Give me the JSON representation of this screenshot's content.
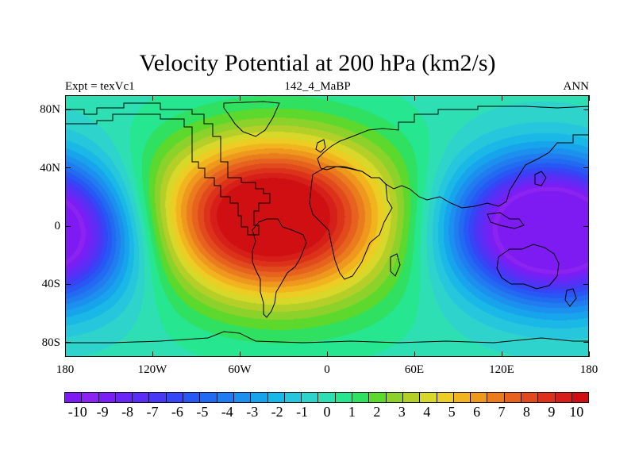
{
  "title": "Velocity Potential at 200 hPa (km2/s)",
  "subtitle_left": "Expt = texVc1",
  "subtitle_center": "142_4_MaBP",
  "subtitle_right": "ANN",
  "x_axis_labels": [
    {
      "lon": -180,
      "text": "180"
    },
    {
      "lon": -120,
      "text": "120W"
    },
    {
      "lon": -60,
      "text": "60W"
    },
    {
      "lon": 0,
      "text": "0"
    },
    {
      "lon": 60,
      "text": "60E"
    },
    {
      "lon": 120,
      "text": "120E"
    },
    {
      "lon": 180,
      "text": "180"
    }
  ],
  "y_axis_labels": [
    {
      "lat": 80,
      "text": "80N"
    },
    {
      "lat": 40,
      "text": "40N"
    },
    {
      "lat": 0,
      "text": "0"
    },
    {
      "lat": -40,
      "text": "40S"
    },
    {
      "lat": -80,
      "text": "80S"
    }
  ],
  "colorbar": {
    "colors": [
      "#7e1af2",
      "#8c24f1",
      "#7a1ef5",
      "#6a26f5",
      "#5a2ef5",
      "#4838f6",
      "#3446f6",
      "#2858f4",
      "#236af2",
      "#207cef",
      "#1c90ee",
      "#18a4ec",
      "#1ab8e6",
      "#26c6dc",
      "#2ed3cc",
      "#2edfb4",
      "#26e690",
      "#30e060",
      "#5cd92c",
      "#8cd22a",
      "#b4d028",
      "#d8d82a",
      "#eccd24",
      "#f2b41e",
      "#ef981e",
      "#ea7c1e",
      "#e6621e",
      "#e04a1c",
      "#dc321a",
      "#d61f18",
      "#d00f12"
    ],
    "labels": [
      "-10",
      "-9",
      "-8",
      "-7",
      "-6",
      "-5",
      "-4",
      "-3",
      "-2",
      "-1",
      "0",
      "1",
      "2",
      "3",
      "4",
      "5",
      "6",
      "7",
      "8",
      "9",
      "10"
    ],
    "min": -10.5,
    "max": 10.5
  },
  "map": {
    "lon_range": [
      -180,
      180
    ],
    "lat_range": [
      -90,
      90
    ],
    "field_centers": [
      {
        "lon": -48,
        "lat": 8,
        "amp": 8.5
      },
      {
        "lon": -18,
        "lat": 22,
        "amp": 3.5
      },
      {
        "lon": -20,
        "lat": -28,
        "amp": 2.0
      },
      {
        "lon": 148,
        "lat": 0,
        "amp": -11.0
      },
      {
        "lon": -180,
        "lat": -15,
        "amp": -4.0
      }
    ]
  }
}
